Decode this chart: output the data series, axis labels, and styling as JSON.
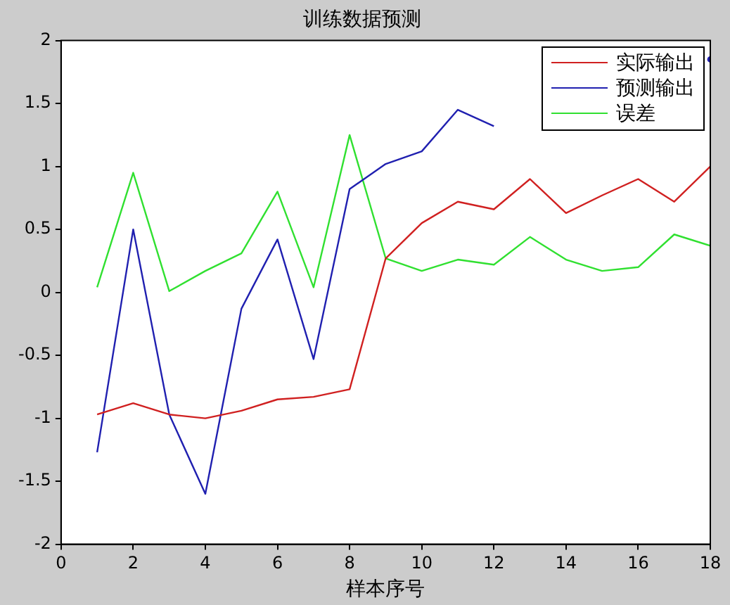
{
  "chart_data": {
    "type": "line",
    "title": "训练数据预测",
    "xlabel": "样本序号",
    "x": [
      1,
      2,
      3,
      4,
      5,
      6,
      7,
      8,
      9,
      10,
      11,
      12,
      13,
      14,
      15,
      16,
      17,
      18
    ],
    "xlim": [
      0,
      18
    ],
    "xticks": [
      0,
      2,
      4,
      6,
      8,
      10,
      12,
      14,
      16,
      18
    ],
    "ylim": [
      -2,
      2
    ],
    "yticks": [
      -2,
      -1.5,
      -1,
      -0.5,
      0,
      0.5,
      1,
      1.5,
      2
    ],
    "grid": false,
    "legend": "top right",
    "marker": "none",
    "line_style": "solid",
    "series": [
      {
        "name": "实际输出",
        "color": "#d02020",
        "values": [
          -0.97,
          -0.88,
          -0.97,
          -1.0,
          -0.94,
          -0.85,
          -0.83,
          -0.77,
          0.27,
          0.55,
          0.72,
          0.66,
          0.9,
          0.63,
          0.77,
          0.9,
          0.72,
          1.0
        ]
      },
      {
        "name": "预测输出",
        "color": "#2020b0",
        "values": [
          -1.27,
          0.5,
          -0.97,
          -1.6,
          -0.13,
          0.42,
          -0.53,
          0.82,
          1.02,
          1.12,
          1.45,
          1.32,
          null,
          null,
          null,
          null,
          null,
          1.85
        ]
      },
      {
        "name": "误差",
        "color": "#30e030",
        "values": [
          0.04,
          0.95,
          0.01,
          0.17,
          0.31,
          0.8,
          0.04,
          1.25,
          0.27,
          0.17,
          0.26,
          0.22,
          0.44,
          0.26,
          0.17,
          0.2,
          0.46,
          0.37
        ]
      }
    ]
  }
}
